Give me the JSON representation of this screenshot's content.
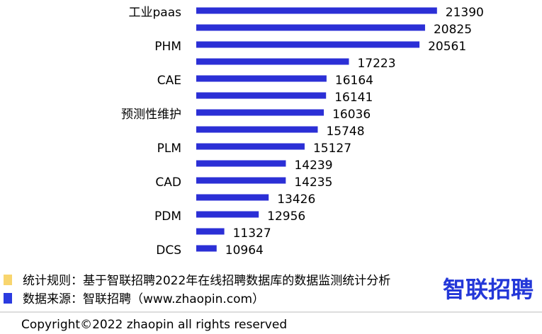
{
  "chart_data": {
    "type": "hbar",
    "categories": [
      "工业paas",
      null,
      "PHM",
      null,
      "CAE",
      null,
      "预测性维护",
      null,
      "PLM",
      null,
      "CAD",
      null,
      "PDM",
      null,
      "DCS"
    ],
    "values": [
      21390,
      20825,
      20561,
      17223,
      16164,
      16141,
      16036,
      15748,
      15127,
      14239,
      14235,
      13426,
      12956,
      11327,
      10964
    ],
    "color": "#2b2fd6",
    "xlim": [
      10000,
      22000
    ]
  },
  "footer": {
    "notes": [
      {
        "color": "#f8d56e",
        "text": "统计规则：基于智联招聘2022年在线招聘数据库的数据监测统计分析"
      },
      {
        "color": "#2b3be0",
        "text": "数据来源：智联招聘（www.zhaopin.com）"
      }
    ],
    "logo": "智联招聘",
    "copyright": "Copyright©2022 zhaopin all rights reserved"
  }
}
